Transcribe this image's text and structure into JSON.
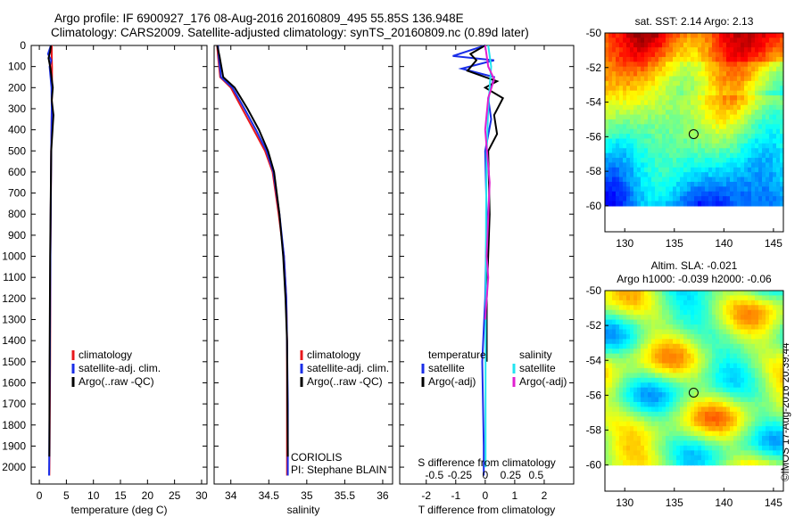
{
  "header": {
    "line1": "Argo profile: IF 6900927_176 08-Aug-2016 20160809_495 55.85S 136.948E",
    "line2": "Climatology: CARS2009. Satellite-adjusted climatology: synTS_20160809.nc (0.89d later)"
  },
  "stamp": "©IMOS 17-Aug-2016 20:39:44",
  "colors": {
    "climatology": "#e8181c",
    "satellite": "#1a2ee8",
    "argo": "#000000",
    "sal_satellite": "#22e4f0",
    "sal_argo": "#e020d0"
  },
  "chart_data": [
    {
      "id": "temperature",
      "type": "line",
      "xlabel": "temperature (deg C)",
      "ylabel": "",
      "xlim": [
        -1.5,
        31
      ],
      "ylim": [
        2080,
        0
      ],
      "xticks": [
        0,
        5,
        10,
        15,
        20,
        25,
        30
      ],
      "yticks": [
        0,
        100,
        200,
        300,
        400,
        500,
        600,
        700,
        800,
        900,
        1000,
        1100,
        1200,
        1300,
        1400,
        1500,
        1600,
        1700,
        1800,
        1900,
        2000
      ],
      "legend_position": "center",
      "legend": [
        "climatology",
        "satellite-adj. clim.",
        "Argo(..raw -QC)"
      ],
      "series": [
        {
          "name": "climatology",
          "role": "climatology",
          "x": [
            2.3,
            2.3,
            2.35,
            2.35,
            2.3,
            2.2,
            2.05,
            2.0,
            1.9,
            1.85
          ],
          "y": [
            0,
            50,
            100,
            200,
            300,
            500,
            1000,
            1500,
            1900,
            2040
          ]
        },
        {
          "name": "satellite-adj. clim.",
          "role": "satellite",
          "x": [
            2.14,
            1.6,
            2.2,
            1.9,
            2.25,
            2.3,
            2.2,
            2.05,
            1.95,
            1.85,
            1.8
          ],
          "y": [
            0,
            40,
            70,
            100,
            200,
            300,
            500,
            1000,
            1500,
            1900,
            2040
          ]
        },
        {
          "name": "Argo(..raw -QC)",
          "role": "argo",
          "x": [
            2.13,
            2.0,
            1.7,
            2.0,
            2.5,
            2.3,
            2.6,
            2.2,
            2.0,
            1.9,
            1.85
          ],
          "y": [
            0,
            30,
            60,
            100,
            200,
            260,
            330,
            500,
            1000,
            1500,
            1950
          ]
        }
      ]
    },
    {
      "id": "salinity",
      "type": "line",
      "xlabel": "salinity",
      "ylabel": "",
      "xlim": [
        33.78,
        36.13
      ],
      "ylim": [
        2080,
        0
      ],
      "xticks": [
        34,
        34.5,
        35,
        35.5,
        36
      ],
      "legend_position": "center",
      "legend": [
        "climatology",
        "satellite-adj. clim.",
        "Argo(..raw -QC)"
      ],
      "annotation": [
        "CORIOLIS",
        "PI: Stephane BLAIN"
      ],
      "series": [
        {
          "name": "climatology",
          "role": "climatology",
          "x": [
            33.82,
            33.83,
            33.86,
            34.0,
            34.15,
            34.3,
            34.45,
            34.55,
            34.63,
            34.7,
            34.73,
            34.74,
            34.74,
            34.74
          ],
          "y": [
            0,
            50,
            150,
            200,
            300,
            400,
            500,
            600,
            800,
            1000,
            1200,
            1400,
            1700,
            2040
          ]
        },
        {
          "name": "satellite-adj. clim.",
          "role": "satellite",
          "x": [
            33.83,
            33.84,
            33.87,
            34.02,
            34.18,
            34.33,
            34.47,
            34.56,
            34.64,
            34.7,
            34.73,
            34.74,
            34.75,
            34.75
          ],
          "y": [
            0,
            50,
            150,
            200,
            300,
            400,
            500,
            600,
            800,
            1000,
            1200,
            1400,
            1700,
            2040
          ]
        },
        {
          "name": "Argo(..raw -QC)",
          "role": "argo",
          "x": [
            33.82,
            33.85,
            33.9,
            34.05,
            34.22,
            34.37,
            34.49,
            34.57,
            34.64,
            34.69,
            34.72,
            34.74,
            34.75
          ],
          "y": [
            0,
            50,
            150,
            200,
            300,
            400,
            500,
            600,
            800,
            1000,
            1200,
            1400,
            1950
          ]
        }
      ]
    },
    {
      "id": "differences",
      "type": "line",
      "xlabel": "T difference from climatology",
      "x2label": "S difference from climatology",
      "xlim": [
        -2.9,
        3.0
      ],
      "ylim": [
        2080,
        0
      ],
      "xticks": [
        -2,
        -1,
        0,
        1,
        2
      ],
      "x2ticks": [
        -0.5,
        -0.25,
        0,
        0.25,
        0.5
      ],
      "legend_titles": [
        "temperature",
        "salinity"
      ],
      "legend": [
        "satellite",
        "Argo(-adj)",
        "satellite",
        "Argo(-adj)"
      ],
      "series": [
        {
          "name": "satellite",
          "group": "temperature",
          "role": "satellite",
          "x": [
            0,
            -1.1,
            0.3,
            -0.8,
            0.3,
            0.1,
            0.2,
            0.0,
            0.05,
            0.0,
            -0.1,
            -0.05,
            -0.05
          ],
          "y": [
            0,
            50,
            70,
            110,
            150,
            250,
            350,
            500,
            800,
            1200,
            1500,
            1900,
            2040
          ]
        },
        {
          "name": "Argo(-adj)",
          "group": "temperature",
          "role": "argo",
          "x": [
            0,
            -0.5,
            -0.3,
            -0.6,
            0.4,
            0.0,
            0.6,
            0.3,
            0.4,
            0.1,
            0.15,
            0.05,
            0.05
          ],
          "y": [
            0,
            40,
            70,
            120,
            170,
            200,
            250,
            330,
            420,
            500,
            800,
            1200,
            1500
          ]
        },
        {
          "name": "satellite",
          "group": "salinity",
          "role": "sal_satellite",
          "x": [
            0.1,
            0.2,
            0.15,
            0.1,
            0.05,
            0.03,
            0.02,
            0.01,
            0.01
          ],
          "y": [
            0,
            100,
            200,
            300,
            500,
            800,
            1200,
            1500,
            2000
          ]
        },
        {
          "name": "Argo(-adj)",
          "group": "salinity",
          "role": "sal_argo",
          "x": [
            0,
            0.1,
            0.3,
            0.1,
            0.0,
            0.15,
            0.05,
            0.1,
            0.0
          ],
          "y": [
            0,
            100,
            160,
            250,
            400,
            650,
            1000,
            1100,
            1300
          ]
        }
      ]
    },
    {
      "id": "sst-map",
      "type": "heatmap",
      "title": "sat. SST: 2.14  Argo: 2.13",
      "xlim": [
        128,
        146
      ],
      "ylim": [
        -61.5,
        -50
      ],
      "xticks": [
        130,
        135,
        140,
        145
      ],
      "yticks": [
        -50,
        -52,
        -54,
        -56,
        -58,
        -60
      ],
      "data_extent_lat": [
        -60,
        -50
      ],
      "marker": {
        "lon": 136.948,
        "lat": -55.85
      },
      "colormap": "jet"
    },
    {
      "id": "sla-map",
      "type": "heatmap",
      "title": "Altim. SLA: -0.021",
      "subtitle": "Argo h1000: -0.039 h2000: -0.06",
      "xlim": [
        128,
        146
      ],
      "ylim": [
        -61.5,
        -50
      ],
      "xticks": [
        130,
        135,
        140,
        145
      ],
      "yticks": [
        -50,
        -52,
        -54,
        -56,
        -58,
        -60
      ],
      "data_extent_lat": [
        -60,
        -50
      ],
      "marker": {
        "lon": 136.948,
        "lat": -55.85
      },
      "colormap": "jet"
    }
  ]
}
